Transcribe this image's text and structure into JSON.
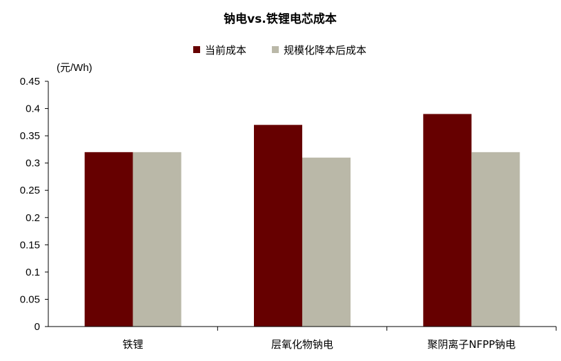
{
  "chart_data": {
    "type": "bar",
    "title": "钠电vs.铁锂电芯成本",
    "unit_label": "(元/Wh)",
    "categories": [
      "铁锂",
      "层氧化物钠电",
      "聚阴离子NFPP钠电"
    ],
    "series": [
      {
        "name": "当前成本",
        "values": [
          0.32,
          0.37,
          0.39
        ],
        "color": "#660000"
      },
      {
        "name": "规模化降本后成本",
        "values": [
          0.32,
          0.31,
          0.32
        ],
        "color": "#BAB8A8"
      }
    ],
    "ylim": [
      0,
      0.45
    ],
    "yticks": [
      "0",
      "0.05",
      "0.1",
      "0.15",
      "0.2",
      "0.25",
      "0.3",
      "0.35",
      "0.4",
      "0.45"
    ],
    "grid": false,
    "legend_position": "top-center"
  }
}
